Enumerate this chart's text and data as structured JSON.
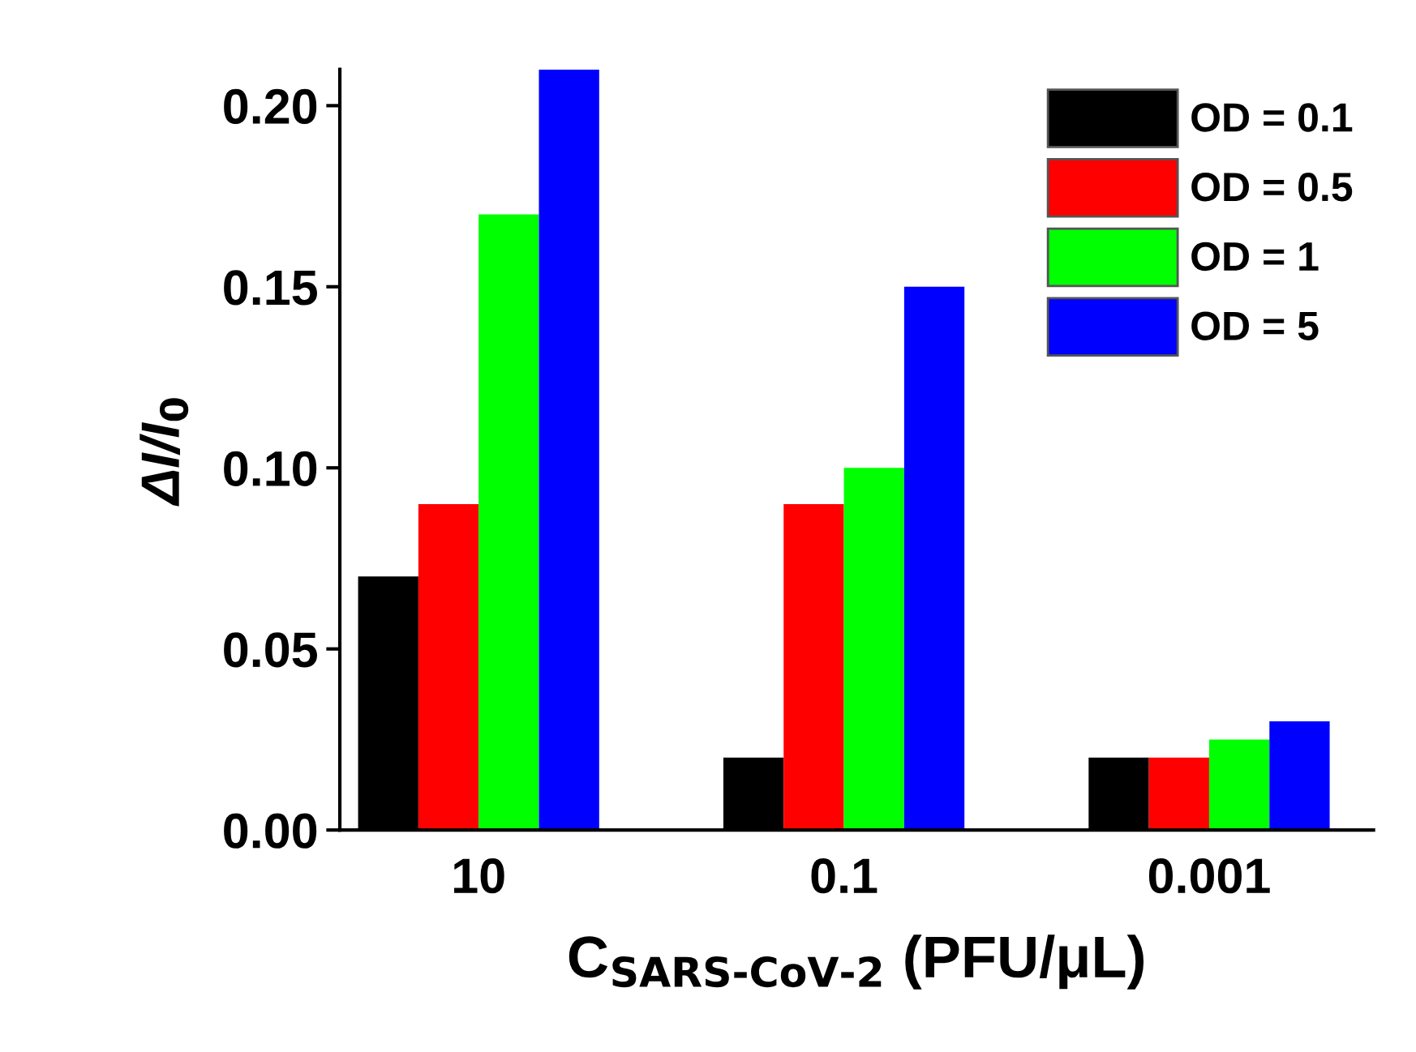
{
  "chart_data": {
    "type": "bar",
    "xlabel": "C$_{SARS-CoV-2}$ (PFU/μL)",
    "ylabel": "ΔI/I$_{0}$",
    "categories": [
      "10",
      "0.1",
      "0.001"
    ],
    "series": [
      {
        "name": "OD = 0.1",
        "color": "#000000",
        "values": [
          0.07,
          0.02,
          0.02
        ]
      },
      {
        "name": "OD = 0.5",
        "color": "#ff0000",
        "values": [
          0.09,
          0.09,
          0.02
        ]
      },
      {
        "name": "OD = 1",
        "color": "#00ff00",
        "values": [
          0.17,
          0.1,
          0.025
        ]
      },
      {
        "name": "OD = 5",
        "color": "#0000ff",
        "values": [
          0.21,
          0.15,
          0.03
        ]
      }
    ],
    "ylim": [
      0,
      0.21
    ],
    "yticks": [
      {
        "value": 0,
        "label": "0.00"
      },
      {
        "value": 0.05,
        "label": "0.05"
      },
      {
        "value": 0.1,
        "label": "0.10"
      },
      {
        "value": 0.15,
        "label": "0.15"
      },
      {
        "value": 0.2,
        "label": "0.20"
      }
    ],
    "legend": "top right",
    "grid": false
  }
}
